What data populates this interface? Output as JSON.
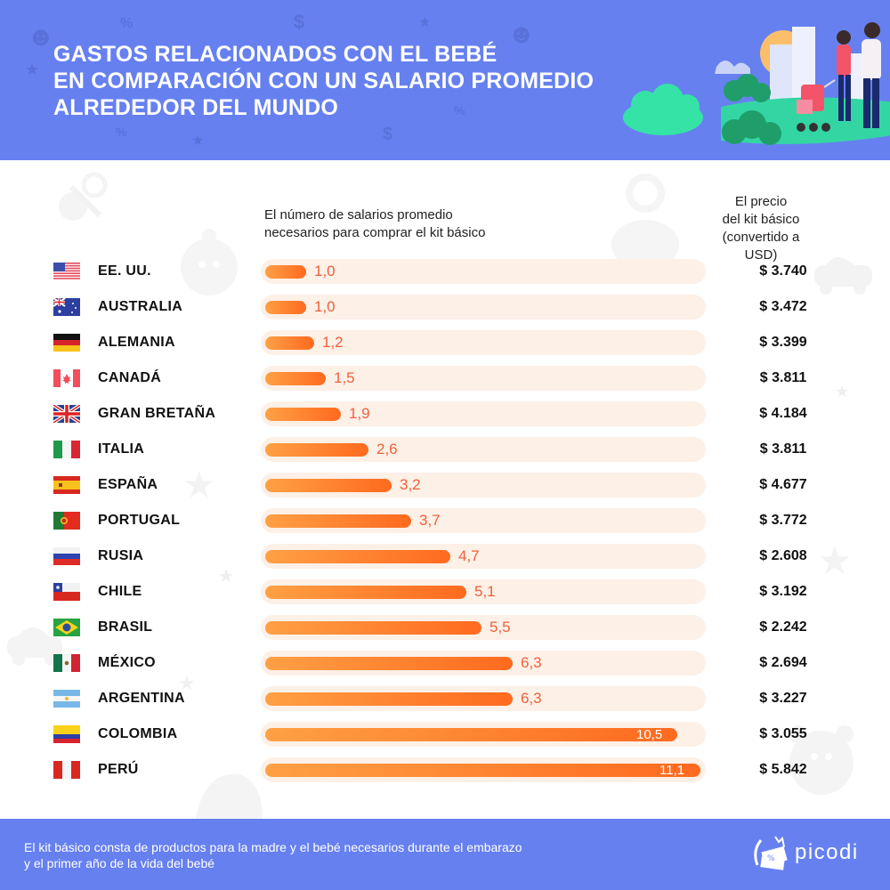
{
  "header": {
    "title_lines": [
      "GASTOS RELACIONADOS CON EL BEBÉ",
      "EN COMPARACIÓN CON UN SALARIO PROMEDIO",
      "ALREDEDOR DEL MUNDO"
    ]
  },
  "columns": {
    "left_header": [
      "El número de salarios promedio",
      "necesarios para comprar el kit básico"
    ],
    "right_header": [
      "El precio",
      "del kit básico",
      "(convertido a USD)"
    ]
  },
  "colors": {
    "header_bg": "#6680f0",
    "bar_start": "#ffa044",
    "bar_end": "#ff6a1f",
    "value_label": "#f0603a",
    "track": "#fdf0e7"
  },
  "chart_data": {
    "type": "bar",
    "orientation": "horizontal",
    "title": "GASTOS RELACIONADOS CON EL BEBÉ EN COMPARACIÓN CON UN SALARIO PROMEDIO ALREDEDOR DEL MUNDO",
    "xlabel": "El número de salarios promedio necesarios para comprar el kit básico",
    "xlim": [
      0,
      11.2
    ],
    "grid": false,
    "categories": [
      "EE. UU.",
      "AUSTRALIA",
      "ALEMANIA",
      "CANADÁ",
      "GRAN BRETAÑA",
      "ITALIA",
      "ESPAÑA",
      "PORTUGAL",
      "RUSIA",
      "CHILE",
      "BRASIL",
      "MÉXICO",
      "ARGENTINA",
      "COLOMBIA",
      "PERÚ"
    ],
    "flags": [
      "us-flag",
      "australia-flag",
      "germany-flag",
      "canada-flag",
      "uk-flag",
      "italy-flag",
      "spain-flag",
      "portugal-flag",
      "russia-flag",
      "chile-flag",
      "brazil-flag",
      "mexico-flag",
      "argentina-flag",
      "colombia-flag",
      "peru-flag"
    ],
    "values": [
      1.0,
      1.0,
      1.2,
      1.5,
      1.9,
      2.6,
      3.2,
      3.7,
      4.7,
      5.1,
      5.5,
      6.3,
      6.3,
      10.5,
      11.1
    ],
    "value_labels": [
      "1,0",
      "1,0",
      "1,2",
      "1,5",
      "1,9",
      "2,6",
      "3,2",
      "3,7",
      "4,7",
      "5,1",
      "5,5",
      "6,3",
      "6,3",
      "10,5",
      "11,1"
    ],
    "prices": [
      "$ 3.740",
      "$ 3.472",
      "$ 3.399",
      "$ 3.811",
      "$ 4.184",
      "$ 3.811",
      "$ 4.677",
      "$ 3.772",
      "$ 2.608",
      "$ 3.192",
      "$ 2.242",
      "$ 2.694",
      "$ 3.227",
      "$ 3.055",
      "$ 5.842"
    ],
    "prices_usd": [
      3740,
      3472,
      3399,
      3811,
      4184,
      3811,
      4677,
      3772,
      2608,
      3192,
      2242,
      2694,
      3227,
      3055,
      5842
    ]
  },
  "footer": {
    "note_lines": [
      "El kit básico consta de productos para la madre y el bebé necesarios durante el embarazo",
      "y el primer año de la vida del bebé"
    ],
    "brand": "picodi"
  }
}
